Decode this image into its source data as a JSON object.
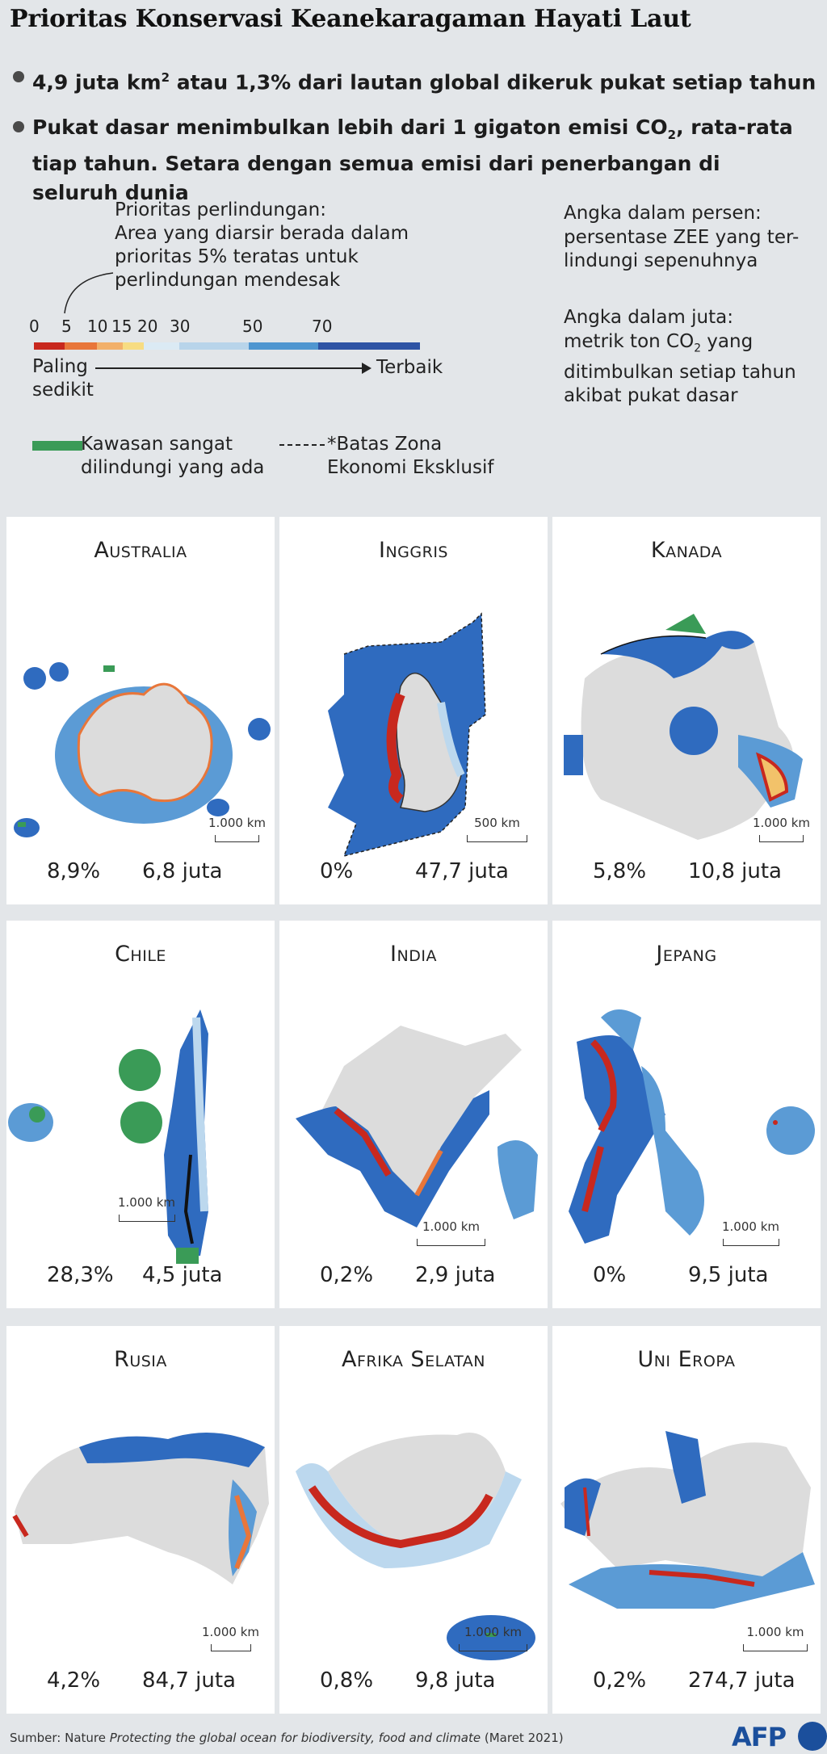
{
  "title": "Prioritas Konservasi Keanekaragaman Hayati Laut",
  "bullet1": {
    "pre": "4,9 juta km",
    "sup": "2",
    "post": " atau 1,3% dari lautan global dikeruk pukat setiap tahun"
  },
  "bullet2": {
    "pre": "Pukat dasar menimbulkan lebih dari 1 gigaton emisi CO",
    "sub": "2",
    "post": ", rata-rata tiap tahun. Setara dengan semua emisi dari penerbangan di seluruh dunia"
  },
  "legend": {
    "priority_title": "Prioritas perlindungan:",
    "priority_desc": "Area yang diarsir berada dalam prioritas 5% teratas untuk perlindungan mendesak",
    "scale_labels": [
      "0",
      "5",
      "10",
      "15",
      "20",
      "30",
      "50",
      "70"
    ],
    "scale_colors": [
      "#c8281e",
      "#e8763a",
      "#f2b06a",
      "#f7dc82",
      "#dbeaf4",
      "#b8d4ea",
      "#4f96d0",
      "#2e53a4"
    ],
    "low_label": "Paling sedikit",
    "high_label": "Terbaik",
    "percent_title": "Angka dalam persen:",
    "percent_desc": "persentase ZEE yang ter-lindungi sepenuhnya",
    "million_title": "Angka dalam juta:",
    "million_desc_pre": "metrik ton CO",
    "million_desc_sub": "2",
    "million_desc_post": " yang ditimbulkan setiap tahun akibat pukat dasar",
    "protected_label": "Kawasan sangat dilindungi yang ada",
    "eez_label": "*Batas Zona Ekonomi Eksklusif",
    "protected_color": "#3a9b57"
  },
  "panels": [
    {
      "name": "Australia",
      "percent": "8,9%",
      "emissions": "6,8 juta",
      "scale": "1.000 km"
    },
    {
      "name": "Inggris",
      "percent": "0%",
      "emissions": "47,7 juta",
      "scale": "500 km"
    },
    {
      "name": "Kanada",
      "percent": "5,8%",
      "emissions": "10,8 juta",
      "scale": "1.000 km"
    },
    {
      "name": "Chile",
      "percent": "28,3%",
      "emissions": "4,5 juta",
      "scale": "1.000 km"
    },
    {
      "name": "India",
      "percent": "0,2%",
      "emissions": "2,9 juta",
      "scale": "1.000 km"
    },
    {
      "name": "Jepang",
      "percent": "0%",
      "emissions": "9,5 juta",
      "scale": "1.000 km"
    },
    {
      "name": "Rusia",
      "percent": "4,2%",
      "emissions": "84,7 juta",
      "scale": "1.000 km"
    },
    {
      "name": "Afrika Selatan",
      "percent": "0,8%",
      "emissions": "9,8 juta",
      "scale": "1.000 km"
    },
    {
      "name": "Uni Eropa",
      "percent": "0,2%",
      "emissions": "274,7 juta",
      "scale": "1.000 km"
    }
  ],
  "footer": {
    "prefix": "Sumber: Nature ",
    "italic": "Protecting the global ocean for biodiversity, food and climate",
    "suffix": " (Maret 2021)"
  },
  "logo": "AFP"
}
